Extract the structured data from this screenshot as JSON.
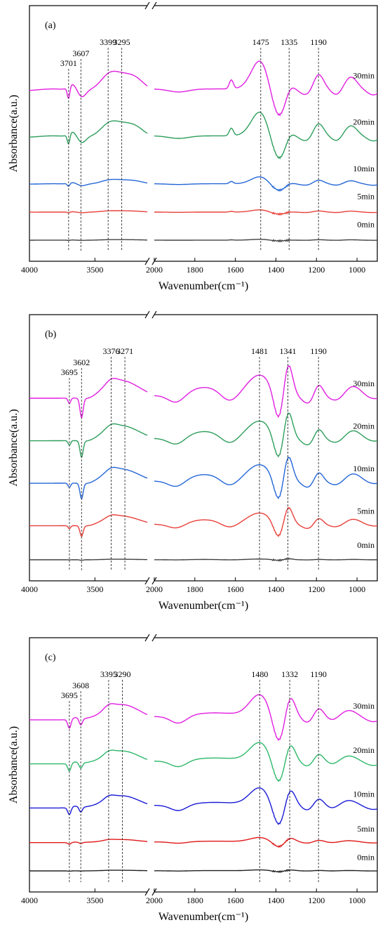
{
  "chart_data": [
    {
      "type": "line",
      "panel_label": "(a)",
      "xlabel": "Wavenumber(cm⁻¹)",
      "ylabel": "Absorbance(a.u.)",
      "x_break": [
        3100,
        2000
      ],
      "xlim_left": [
        4000,
        3100
      ],
      "xlim_right": [
        2000,
        900
      ],
      "x_ticks": [
        "4000",
        "3500",
        "2000",
        "1800",
        "1600",
        "1400",
        "1200",
        "1000"
      ],
      "peak_lines": [
        {
          "x": 3701,
          "label": "3701"
        },
        {
          "x": 3607,
          "label": "3607"
        },
        {
          "x": 3399,
          "label": "3399"
        },
        {
          "x": 3295,
          "label": "3295"
        },
        {
          "x": 1475,
          "label": "1475"
        },
        {
          "x": 1335,
          "label": "1335"
        },
        {
          "x": 1190,
          "label": "1190"
        }
      ],
      "series": [
        {
          "name": "0min",
          "color": "#404040",
          "scale": 0.03,
          "baseline": 0.0
        },
        {
          "name": "5min",
          "color": "#e8403a",
          "scale": 0.08,
          "baseline": 1.5
        },
        {
          "name": "10min",
          "color": "#2466d6",
          "scale": 0.25,
          "baseline": 3.0
        },
        {
          "name": "20min",
          "color": "#2e9e5c",
          "scale": 0.85,
          "baseline": 5.5
        },
        {
          "name": "30min",
          "color": "#e11fe1",
          "scale": 1.0,
          "baseline": 8.0
        }
      ]
    },
    {
      "type": "line",
      "panel_label": "(b)",
      "xlabel": "Wavenumber(cm⁻¹)",
      "ylabel": "Absorbance(a.u.)",
      "x_break": [
        3100,
        2000
      ],
      "xlim_left": [
        4000,
        3100
      ],
      "xlim_right": [
        2000,
        900
      ],
      "x_ticks": [
        "4000",
        "3500",
        "2000",
        "1800",
        "1600",
        "1400",
        "1200",
        "1000"
      ],
      "peak_lines": [
        {
          "x": 3695,
          "label": "3695"
        },
        {
          "x": 3602,
          "label": "3602"
        },
        {
          "x": 3376,
          "label": "3376"
        },
        {
          "x": 3271,
          "label": "3271"
        },
        {
          "x": 1481,
          "label": "1481"
        },
        {
          "x": 1341,
          "label": "1341"
        },
        {
          "x": 1190,
          "label": "1190"
        }
      ],
      "series": [
        {
          "name": "0min",
          "color": "#404040",
          "scale": 0.03,
          "baseline": 0.0
        },
        {
          "name": "5min",
          "color": "#e8403a",
          "scale": 0.55,
          "baseline": 2.0
        },
        {
          "name": "10min",
          "color": "#2466d6",
          "scale": 0.8,
          "baseline": 4.5
        },
        {
          "name": "20min",
          "color": "#2e9e5c",
          "scale": 0.85,
          "baseline": 7.0
        },
        {
          "name": "30min",
          "color": "#e11fe1",
          "scale": 1.0,
          "baseline": 9.5
        }
      ]
    },
    {
      "type": "line",
      "panel_label": "(c)",
      "xlabel": "Wavenumber(cm⁻¹)",
      "ylabel": "Absorbance(a.u.)",
      "x_break": [
        3100,
        2000
      ],
      "xlim_left": [
        4000,
        3100
      ],
      "xlim_right": [
        2000,
        900
      ],
      "x_ticks": [
        "4000",
        "3500",
        "2000",
        "1800",
        "1600",
        "1400",
        "1200",
        "1000"
      ],
      "peak_lines": [
        {
          "x": 3695,
          "label": "3695"
        },
        {
          "x": 3608,
          "label": "3608"
        },
        {
          "x": 3395,
          "label": "3395"
        },
        {
          "x": 3290,
          "label": "3290"
        },
        {
          "x": 1480,
          "label": "1480"
        },
        {
          "x": 1332,
          "label": "1332"
        },
        {
          "x": 1190,
          "label": "1190"
        }
      ],
      "series": [
        {
          "name": "0min",
          "color": "#202020",
          "scale": 0.04,
          "baseline": 0.0
        },
        {
          "name": "5min",
          "color": "#e01818",
          "scale": 0.2,
          "baseline": 1.8
        },
        {
          "name": "10min",
          "color": "#1a1ad6",
          "scale": 0.8,
          "baseline": 4.0
        },
        {
          "name": "20min",
          "color": "#2eb86a",
          "scale": 0.85,
          "baseline": 6.8
        },
        {
          "name": "30min",
          "color": "#e11fe1",
          "scale": 1.0,
          "baseline": 9.6
        }
      ]
    }
  ]
}
